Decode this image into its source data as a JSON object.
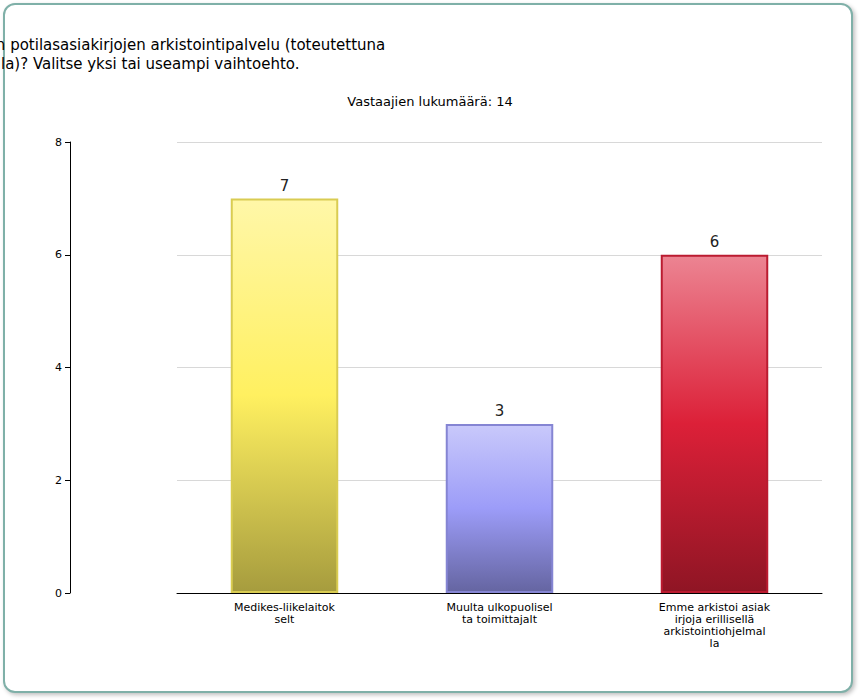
{
  "chart_data": {
    "type": "bar",
    "title": "Onko teillä halukkuutta ostaa sähköisten potilasasiakirjojen arkistointipalvelu (toteutettuna erillisellä arkistointiohjelmalla)? Valitse yksi tai useampi vaihtoehto.",
    "subtitle": "Vastaajien lukumäärä: 14",
    "categories": [
      "Medikes-liikelaitokselt",
      "Muulta ulkopuoliselta toimittajalt",
      "Emme arkistoi asiakirjoja erillisellä arkistointiohjelmalla"
    ],
    "values": [
      7,
      3,
      6
    ],
    "colors": [
      "#fff060",
      "#9c9cf8",
      "#dc2038"
    ],
    "ylim": [
      0,
      8
    ],
    "yticks": [
      0,
      2,
      4,
      6,
      8
    ],
    "grid": true,
    "data_labels": true
  }
}
